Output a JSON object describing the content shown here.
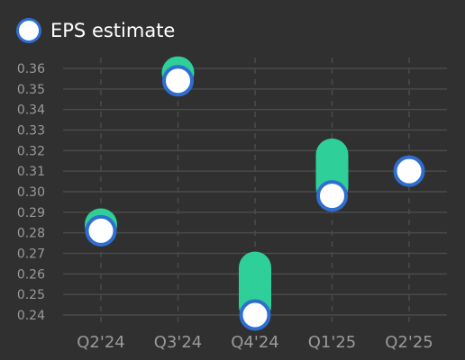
{
  "legend": {
    "label": "EPS estimate",
    "marker_fill": "#ffffff",
    "marker_border": "#2f6ed1"
  },
  "colors": {
    "background": "#303030",
    "bar": "#2ecf99",
    "grid": "#4a4a4a",
    "tick_text": "#9a9a9a"
  },
  "chart_data": {
    "type": "scatter",
    "categories": [
      "Q2'24",
      "Q3'24",
      "Q4'24",
      "Q1'25",
      "Q2'25"
    ],
    "series": [
      {
        "name": "EPS estimate",
        "values": [
          0.281,
          0.354,
          0.24,
          0.298,
          0.31
        ]
      }
    ],
    "bars": [
      {
        "low": 0.281,
        "high": 0.284
      },
      {
        "low": 0.354,
        "high": 0.358
      },
      {
        "low": 0.24,
        "high": 0.263
      },
      {
        "low": 0.298,
        "high": 0.318
      },
      null
    ],
    "yticks": [
      0.24,
      0.25,
      0.26,
      0.27,
      0.28,
      0.29,
      0.3,
      0.31,
      0.32,
      0.33,
      0.34,
      0.35,
      0.36
    ],
    "ylim": [
      0.24,
      0.36
    ],
    "grid": true,
    "legend_position": "top-left"
  }
}
